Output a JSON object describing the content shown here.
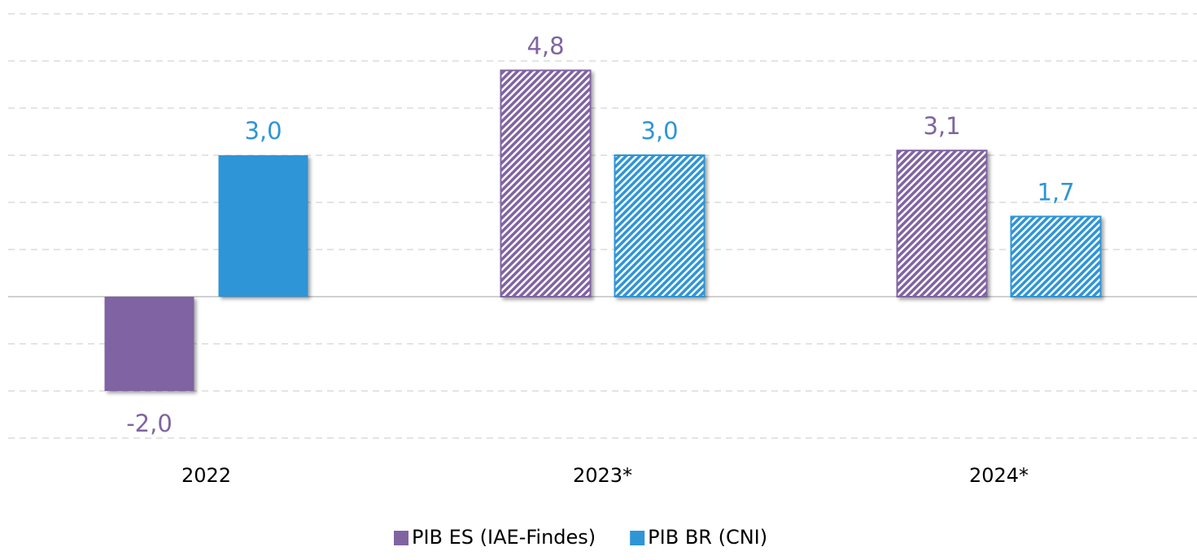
{
  "chart_data": {
    "type": "bar",
    "categories": [
      "2022",
      "2023*",
      "2024*"
    ],
    "series": [
      {
        "name": "PIB ES (IAE-Findes)",
        "color": "#8064a2",
        "values": [
          -2.0,
          4.8,
          3.1
        ],
        "value_labels": [
          "-2,0",
          "4,8",
          "3,1"
        ]
      },
      {
        "name": "PIB BR (CNI)",
        "color": "#2e95d6",
        "values": [
          3.0,
          3.0,
          1.7
        ],
        "value_labels": [
          "3,0",
          "3,0",
          "1,7"
        ]
      }
    ],
    "hatch": [
      false,
      true,
      true
    ],
    "ylim": [
      -3,
      6
    ],
    "yticks": [
      -3,
      -2,
      -1,
      0,
      1,
      2,
      3,
      4,
      5,
      6
    ],
    "grid": true,
    "legend": "bottom"
  }
}
